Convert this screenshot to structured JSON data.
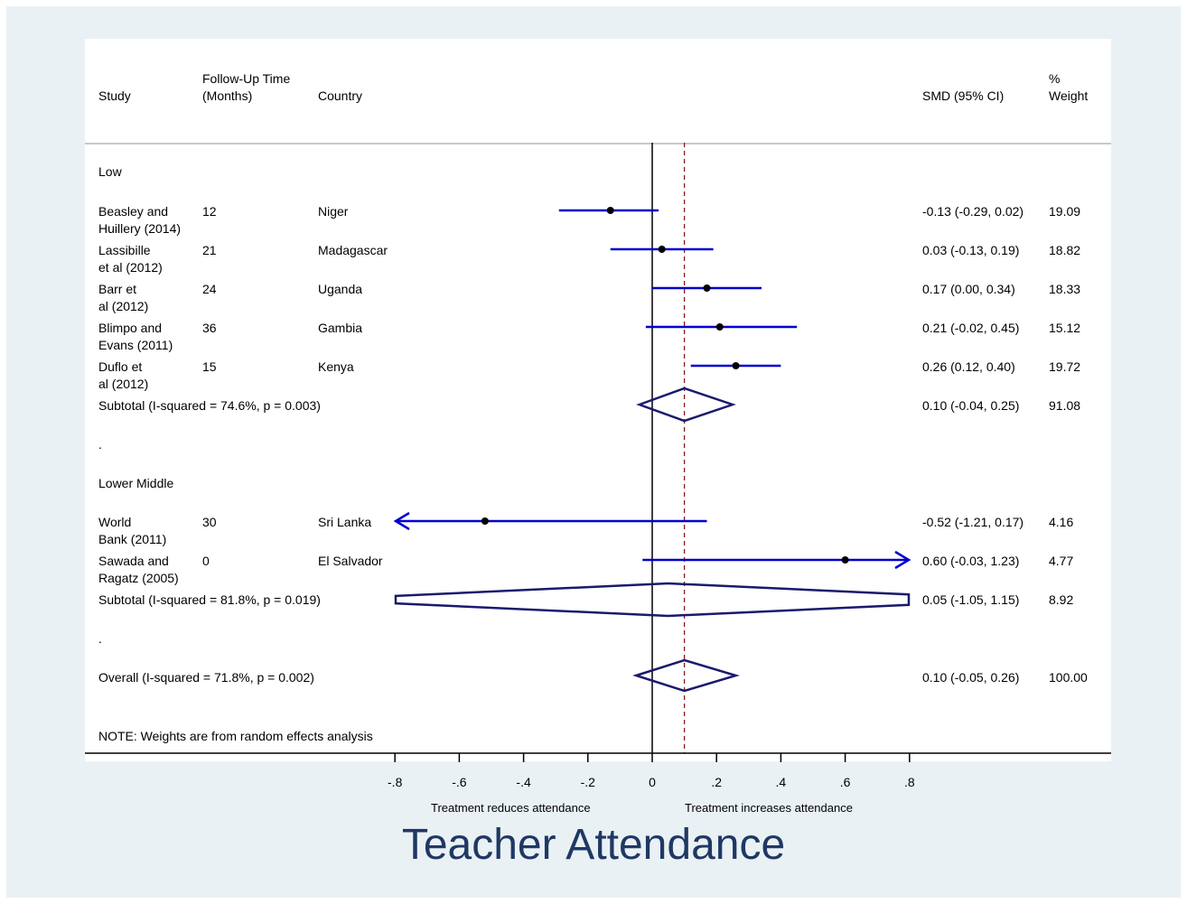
{
  "headers": {
    "study": "Study",
    "followup_line1": "Follow-Up Time",
    "followup_line2": "(Months)",
    "country": "Country",
    "smd": "SMD (95% CI)",
    "weight_line1": "%",
    "weight_line2": "Weight"
  },
  "note": "NOTE: Weights are from random effects analysis",
  "xaxis": {
    "left_label": "Treatment reduces attendance",
    "right_label": "Treatment increases attendance"
  },
  "chart_data": {
    "type": "forest",
    "title": "Teacher Attendance",
    "xlim": [
      -0.8,
      0.8
    ],
    "ticks": [
      -0.8,
      -0.6,
      -0.4,
      -0.2,
      0,
      0.2,
      0.4,
      0.6,
      0.8
    ],
    "tick_labels": [
      "-.8",
      "-.6",
      "-.4",
      "-.2",
      "0",
      ".2",
      ".4",
      ".6",
      ".8"
    ],
    "overall_effect": 0.1,
    "groups": [
      {
        "name": "Low",
        "studies": [
          {
            "study_line1": "Beasley and",
            "study_line2": "Huillery (2014)",
            "followup": "12",
            "country": "Niger",
            "smd": -0.13,
            "lo": -0.29,
            "hi": 0.02,
            "ci_text": "-0.13 (-0.29, 0.02)",
            "weight": "19.09"
          },
          {
            "study_line1": "Lassibille",
            "study_line2": "et al (2012)",
            "followup": "21",
            "country": "Madagascar",
            "smd": 0.03,
            "lo": -0.13,
            "hi": 0.19,
            "ci_text": "0.03 (-0.13, 0.19)",
            "weight": "18.82"
          },
          {
            "study_line1": "Barr et",
            "study_line2": "al (2012)",
            "followup": "24",
            "country": "Uganda",
            "smd": 0.17,
            "lo": 0.0,
            "hi": 0.34,
            "ci_text": "0.17 (0.00, 0.34)",
            "weight": "18.33"
          },
          {
            "study_line1": "Blimpo and",
            "study_line2": "Evans (2011)",
            "followup": "36",
            "country": "Gambia",
            "smd": 0.21,
            "lo": -0.02,
            "hi": 0.45,
            "ci_text": "0.21 (-0.02, 0.45)",
            "weight": "15.12"
          },
          {
            "study_line1": "Duflo et",
            "study_line2": "al (2012)",
            "followup": "15",
            "country": "Kenya",
            "smd": 0.26,
            "lo": 0.12,
            "hi": 0.4,
            "ci_text": "0.26 (0.12, 0.40)",
            "weight": "19.72"
          }
        ],
        "subtotal": {
          "label": "Subtotal  (I-squared = 74.6%, p = 0.003)",
          "smd": 0.1,
          "lo": -0.04,
          "hi": 0.25,
          "ci_text": "0.10 (-0.04, 0.25)",
          "weight": "91.08"
        },
        "separator": "."
      },
      {
        "name": "Lower Middle",
        "studies": [
          {
            "study_line1": "World",
            "study_line2": "Bank (2011)",
            "followup": "30",
            "country": "Sri Lanka",
            "smd": -0.52,
            "lo": -1.21,
            "hi": 0.17,
            "ci_text": "-0.52 (-1.21, 0.17)",
            "weight": "4.16"
          },
          {
            "study_line1": "Sawada and",
            "study_line2": "Ragatz (2005)",
            "followup": "0",
            "country": "El Salvador",
            "smd": 0.6,
            "lo": -0.03,
            "hi": 1.23,
            "ci_text": "0.60 (-0.03, 1.23)",
            "weight": "4.77"
          }
        ],
        "subtotal": {
          "label": "Subtotal  (I-squared = 81.8%, p = 0.019)",
          "smd": 0.05,
          "lo": -1.05,
          "hi": 1.15,
          "ci_text": "0.05 (-1.05, 1.15)",
          "weight": "8.92"
        },
        "separator": "."
      }
    ],
    "overall": {
      "label": "Overall  (I-squared = 71.8%, p = 0.002)",
      "smd": 0.1,
      "lo": -0.05,
      "hi": 0.26,
      "ci_text": "0.10 (-0.05, 0.26)",
      "weight": "100.00"
    }
  }
}
